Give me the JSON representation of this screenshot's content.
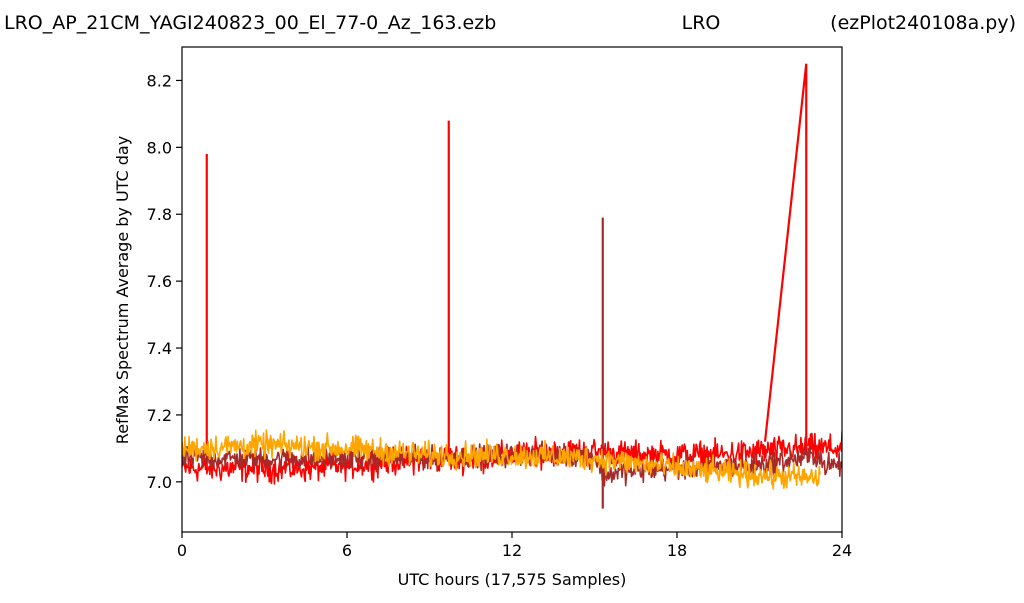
{
  "chart_data": {
    "type": "line",
    "title_left": "LRO_AP_21CM_YAGI240823_00_El_77-0_Az_163.ezb",
    "title_center": "LRO",
    "title_right": "(ezPlot240108a.py)",
    "xlabel": "UTC hours  (17,575 Samples)",
    "ylabel": "RefMax Spectrum Average by UTC day",
    "xlim": [
      0,
      24
    ],
    "ylim": [
      6.85,
      8.3
    ],
    "xticks": [
      0,
      6,
      12,
      18,
      24
    ],
    "xtick_labels": [
      "0",
      "6",
      "12",
      "18",
      "24"
    ],
    "yticks": [
      7.0,
      7.2,
      7.4,
      7.6,
      7.8,
      8.0,
      8.2
    ],
    "ytick_labels": [
      "7.0",
      "7.2",
      "7.4",
      "7.6",
      "7.8",
      "8.0",
      "8.2"
    ],
    "grid": false,
    "series": [
      {
        "color": "#ff0000",
        "x": [
          0,
          1.5,
          3,
          4.5,
          6,
          7.5,
          9,
          10.5,
          12,
          13.5,
          15,
          16.5,
          18,
          19.5,
          21,
          22.5,
          24
        ],
        "y": [
          7.04,
          7.04,
          7.04,
          7.04,
          7.05,
          7.06,
          7.07,
          7.07,
          7.08,
          7.09,
          7.09,
          7.08,
          7.08,
          7.08,
          7.09,
          7.1,
          7.1
        ],
        "noise": 0.03,
        "spikes": [
          {
            "x": 0.9,
            "y": 7.98
          },
          {
            "x": 9.7,
            "y": 8.08
          }
        ],
        "ramp": {
          "x0": 21.2,
          "y0": 7.12,
          "x1": 22.7,
          "y1": 8.25
        }
      },
      {
        "color": "#a52a2a",
        "x": [
          0,
          3,
          6,
          9,
          12,
          15,
          15.3,
          16,
          18,
          21,
          23.2,
          23.3,
          24
        ],
        "y": [
          7.07,
          7.07,
          7.07,
          7.07,
          7.08,
          7.08,
          7.02,
          7.03,
          7.04,
          7.05,
          7.08,
          7.05,
          7.05
        ],
        "noise": 0.025,
        "spikes": [
          {
            "x": 15.3,
            "y": 7.79
          },
          {
            "x": 15.3,
            "y": 6.92
          }
        ]
      },
      {
        "color": "#ffa500",
        "x": [
          0,
          3,
          6,
          9,
          12,
          15,
          18,
          21,
          23.2
        ],
        "y": [
          7.1,
          7.11,
          7.1,
          7.08,
          7.08,
          7.07,
          7.04,
          7.02,
          7.01
        ],
        "noise": 0.028,
        "spikes": []
      }
    ]
  }
}
